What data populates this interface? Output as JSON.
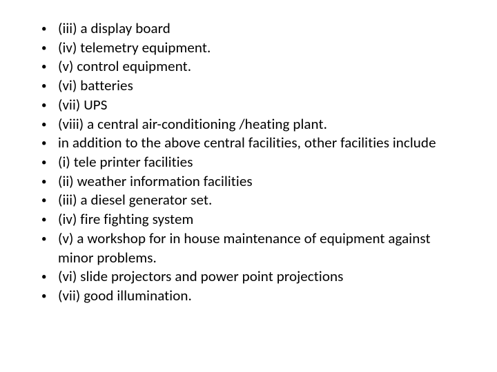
{
  "list": {
    "items": [
      "(iii) a display board",
      "(iv) telemetry equipment.",
      "(v) control equipment.",
      "(vi) batteries",
      "(vii) UPS",
      "(viii) a central air-conditioning /heating plant.",
      " in addition to the above central facilities, other facilities include",
      "(i) tele printer facilities",
      "(ii) weather information facilities",
      "(iii) a diesel generator set.",
      "(iv) fire fighting system",
      "(v) a workshop for in house maintenance of equipment against minor problems.",
      "(vi) slide projectors and power point projections",
      "(vii) good illumination."
    ]
  },
  "style": {
    "font_family": "Calibri",
    "font_size_pt": 16,
    "text_color": "#000000",
    "background_color": "#ffffff",
    "bullet_color": "#000000",
    "line_height": 1.32
  }
}
